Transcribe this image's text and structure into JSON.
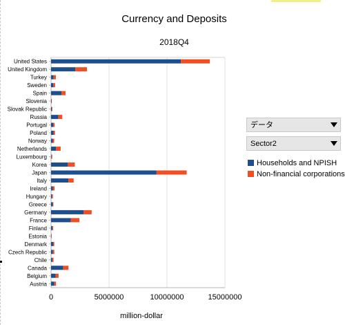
{
  "title": "Currency and Deposits",
  "subtitle": "2018Q4",
  "dropdowns": [
    {
      "label": "データ"
    },
    {
      "label": "Sector2"
    }
  ],
  "legend": [
    {
      "name": "Households and NPISH",
      "color": "#1f4e8c"
    },
    {
      "name": "Non-financial corporations",
      "color": "#f04e23"
    }
  ],
  "chart_data": {
    "type": "bar",
    "orientation": "horizontal",
    "stacked": true,
    "title": "Currency and Deposits",
    "subtitle": "2018Q4",
    "xlabel": "million-dollar",
    "ylabel": "",
    "xlim": [
      0,
      15000000
    ],
    "x_ticks": [
      0,
      5000000,
      10000000,
      15000000
    ],
    "x_tick_labels": [
      "0",
      "5000000",
      "10000000",
      "15000000"
    ],
    "grid": true,
    "categories": [
      "United States",
      "United Kingdom",
      "Turkey",
      "Sweden",
      "Spain",
      "Slovenia",
      "Slovak Republic",
      "Russia",
      "Portugal",
      "Poland",
      "Norway",
      "Netherlands",
      "Luxembourg",
      "Korea",
      "Japan",
      "Italy",
      "Ireland",
      "Hungary",
      "Greece",
      "Germany",
      "France",
      "Finland",
      "Estonia",
      "Denmark",
      "Czech Republic",
      "Chile",
      "Canada",
      "Belgium",
      "Austria"
    ],
    "series": [
      {
        "name": "Households and NPISH",
        "color": "#1f4e8c",
        "values": [
          11200000,
          2100000,
          220000,
          200000,
          900000,
          30000,
          60000,
          620000,
          180000,
          230000,
          150000,
          430000,
          40000,
          1450000,
          9100000,
          1500000,
          150000,
          80000,
          150000,
          2800000,
          1700000,
          110000,
          15000,
          180000,
          160000,
          110000,
          1050000,
          400000,
          280000
        ]
      },
      {
        "name": "Non-financial corporations",
        "color": "#f04e23",
        "values": [
          2500000,
          1000000,
          200000,
          150000,
          350000,
          25000,
          50000,
          350000,
          120000,
          110000,
          120000,
          400000,
          60000,
          600000,
          2600000,
          450000,
          150000,
          80000,
          50000,
          700000,
          750000,
          70000,
          15000,
          100000,
          120000,
          100000,
          450000,
          250000,
          150000
        ]
      }
    ],
    "legend_position": "right"
  }
}
